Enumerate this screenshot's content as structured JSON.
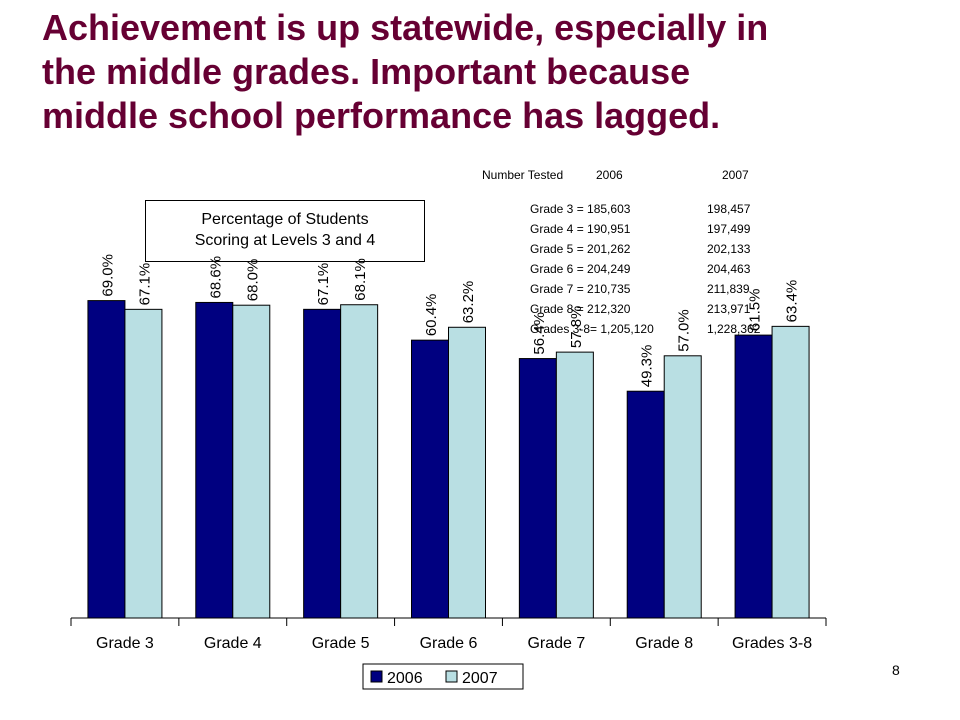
{
  "slide": {
    "title_lines": [
      "Achievement is up statewide, especially in",
      "the middle grades. Important because",
      "middle school performance has lagged."
    ],
    "page_number": "8"
  },
  "number_tested": {
    "header_label": "Number Tested",
    "header_2006": "2006",
    "header_2007": "2007",
    "rows": [
      {
        "label_2006": "Grade 3 = 185,603",
        "value_2007": "198,457"
      },
      {
        "label_2006": "Grade 4 = 190,951",
        "value_2007": "197,499"
      },
      {
        "label_2006": "Grade 5 = 201,262",
        "value_2007": "202,133"
      },
      {
        "label_2006": "Grade 6 = 204,249",
        "value_2007": "204,463"
      },
      {
        "label_2006": "Grade 7 = 210,735",
        "value_2007": "211,839"
      },
      {
        "label_2006": "Grade 8 = 212,320",
        "value_2007": "213,971"
      },
      {
        "label_2006": "Grades 3-8= 1,205,120",
        "value_2007": "1,228,362"
      }
    ]
  },
  "chart_caption": {
    "line1": "Percentage of Students",
    "line2": "Scoring at Levels 3 and 4"
  },
  "chart_data": {
    "type": "bar",
    "categories": [
      "Grade 3",
      "Grade 4",
      "Grade 5",
      "Grade 6",
      "Grade 7",
      "Grade 8",
      "Grades 3-8"
    ],
    "series": [
      {
        "name": "2006",
        "color": "#000080",
        "values": [
          69.0,
          68.6,
          67.1,
          60.4,
          56.4,
          49.3,
          61.5
        ],
        "labels": [
          "69.0%",
          "68.6%",
          "67.1%",
          "60.4%",
          "56.4%",
          "49.3%",
          "61.5%"
        ]
      },
      {
        "name": "2007",
        "color": "#B9DFE3",
        "values": [
          67.1,
          68.0,
          68.1,
          63.2,
          57.8,
          57.0,
          63.4
        ],
        "labels": [
          "67.1%",
          "68.0%",
          "68.1%",
          "63.2%",
          "57.8%",
          "57.0%",
          "63.4%"
        ]
      }
    ],
    "ylim": [
      0,
      100
    ],
    "grid": false,
    "legend_position": "bottom"
  }
}
